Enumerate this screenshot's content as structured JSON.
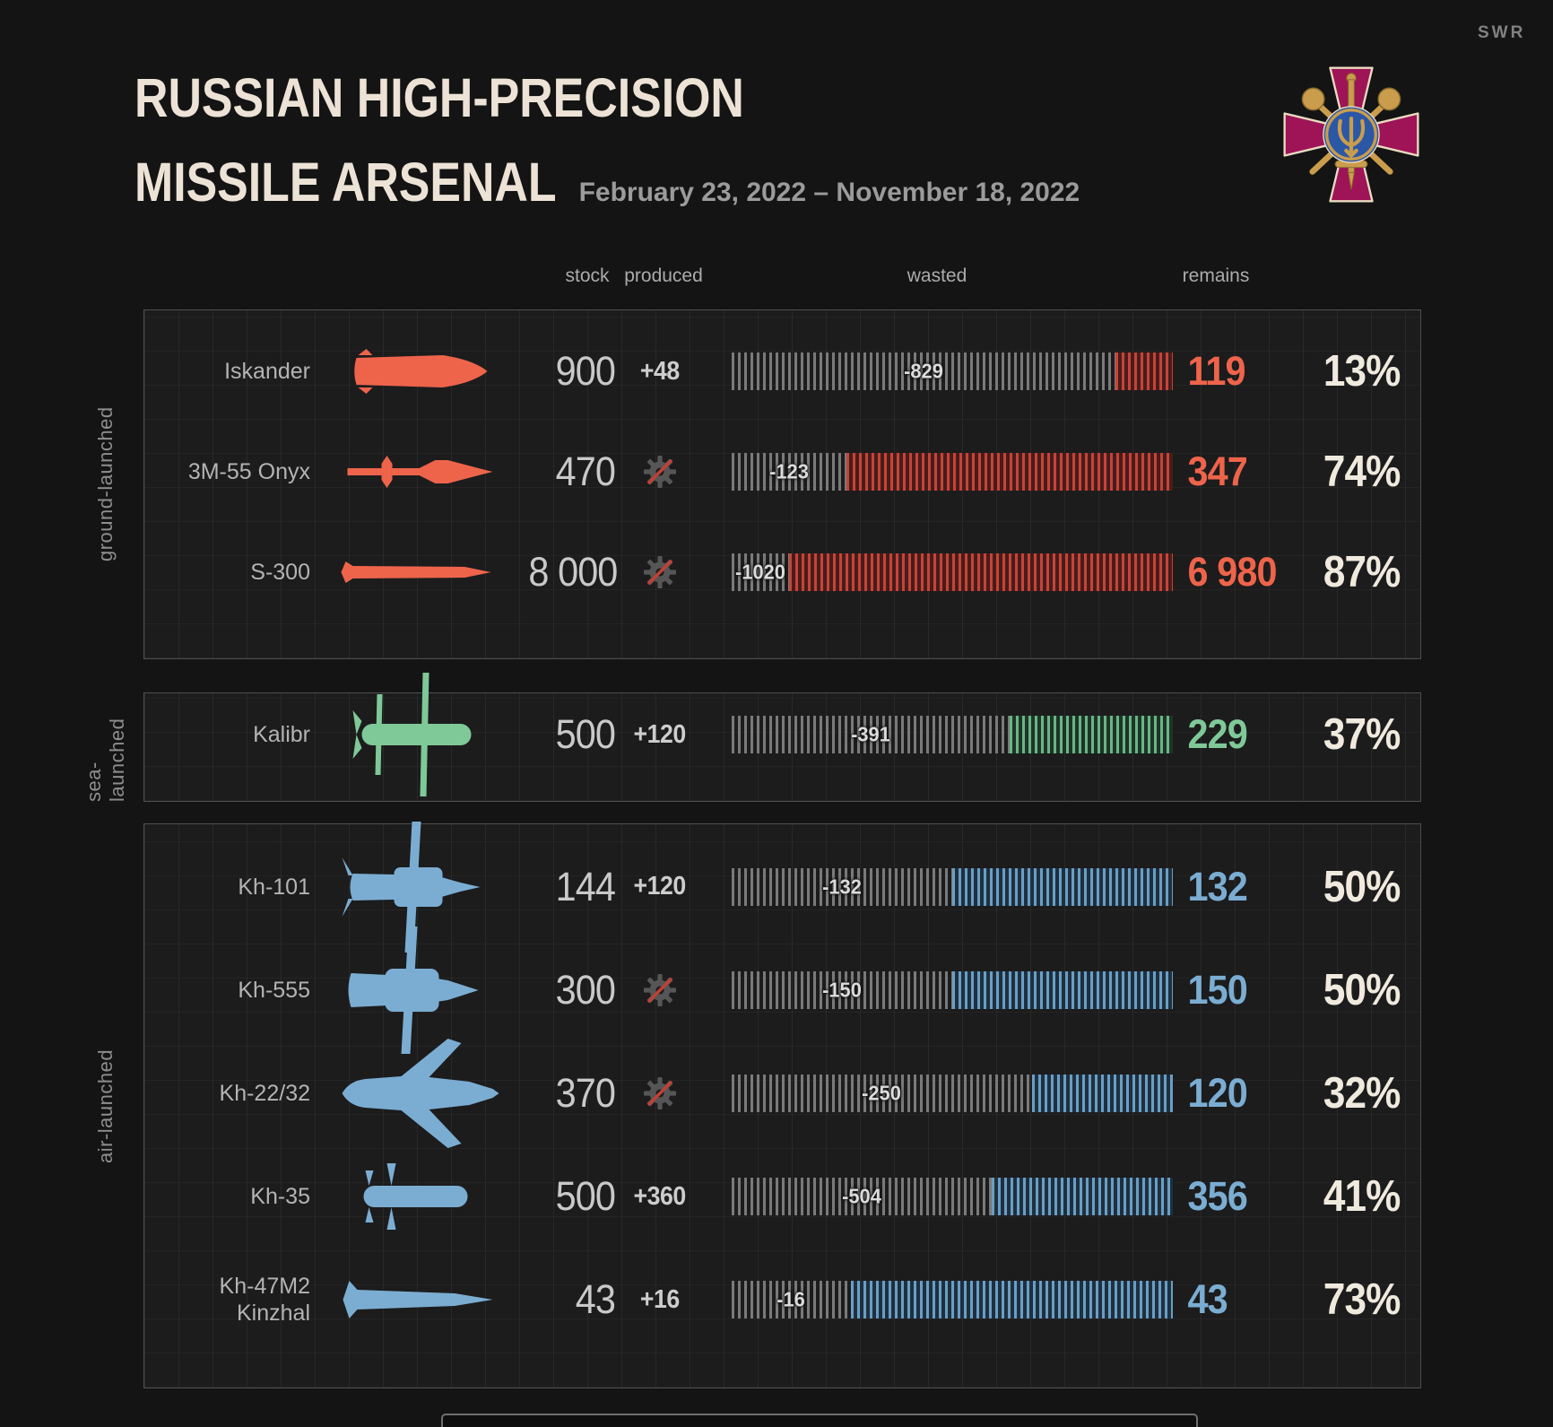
{
  "brand": "SWR",
  "header": {
    "title_line1": "RUSSIAN HIGH-PRECISION",
    "title_line2": "MISSILE ARSENAL",
    "subtitle": "February 23, 2022 – November 18, 2022"
  },
  "logo": {
    "name": "ukraine-ministry-of-defence-emblem",
    "cross_color": "#9e1457",
    "gold": "#c99d4c",
    "blue": "#2b57a7",
    "outline": "#e9dcc0"
  },
  "columns": {
    "stock": "stock",
    "produced": "produced",
    "wasted": "wasted",
    "remains": "remains"
  },
  "groups": [
    {
      "key": "ground",
      "label": "ground-launched",
      "color": "#ee644b",
      "bar_stripe": "#c5443a",
      "bar_fill": "#471d19",
      "rows": [
        {
          "name": "Iskander",
          "icon": "iskander",
          "stock": "900",
          "produced": "+48",
          "wasted": "-829",
          "remains": "119",
          "percent": "13%",
          "percent_value": 13
        },
        {
          "name": "3M-55 Onyx",
          "icon": "onyx",
          "stock": "470",
          "produced": null,
          "wasted": "-123",
          "remains": "347",
          "percent": "74%",
          "percent_value": 74
        },
        {
          "name": "S-300",
          "icon": "s300",
          "stock": "8 000",
          "produced": null,
          "wasted": "-1020",
          "remains": "6 980",
          "percent": "87%",
          "percent_value": 87
        }
      ]
    },
    {
      "key": "sea",
      "label": "sea-launched",
      "color": "#7fc897",
      "bar_stripe": "#6cb486",
      "bar_fill": "#1c3527",
      "rows": [
        {
          "name": "Kalibr",
          "icon": "kalibr",
          "stock": "500",
          "produced": "+120",
          "wasted": "-391",
          "remains": "229",
          "percent": "37%",
          "percent_value": 37
        }
      ]
    },
    {
      "key": "air",
      "label": "air-launched",
      "color": "#7badd2",
      "bar_stripe": "#6b9ec2",
      "bar_fill": "#1e3040",
      "rows": [
        {
          "name": "Kh-101",
          "icon": "kh101",
          "stock": "144",
          "produced": "+120",
          "wasted": "-132",
          "remains": "132",
          "percent": "50%",
          "percent_value": 50
        },
        {
          "name": "Kh-555",
          "icon": "kh555",
          "stock": "300",
          "produced": null,
          "wasted": "-150",
          "remains": "150",
          "percent": "50%",
          "percent_value": 50
        },
        {
          "name": "Kh-22/32",
          "icon": "kh2232",
          "stock": "370",
          "produced": null,
          "wasted": "-250",
          "remains": "120",
          "percent": "32%",
          "percent_value": 32
        },
        {
          "name": "Kh-35",
          "icon": "kh35",
          "stock": "500",
          "produced": "+360",
          "wasted": "-504",
          "remains": "356",
          "percent": "41%",
          "percent_value": 41
        },
        {
          "name": "Kh-47M2 Kinzhal",
          "icon": "kinzhal",
          "stock": "43",
          "produced": "+16",
          "wasted": "-16",
          "remains": "43",
          "percent": "73%",
          "percent_value": 73
        }
      ]
    }
  ],
  "chart_data": {
    "type": "bar",
    "title": "RUSSIAN HIGH-PRECISION MISSILE ARSENAL",
    "subtitle": "February 23, 2022 – November 18, 2022",
    "categories": [
      "Iskander",
      "3M-55 Onyx",
      "S-300",
      "Kalibr",
      "Kh-101",
      "Kh-555",
      "Kh-22/32",
      "Kh-35",
      "Kh-47M2 Kinzhal"
    ],
    "category_groups": [
      "ground-launched",
      "ground-launched",
      "ground-launched",
      "sea-launched",
      "air-launched",
      "air-launched",
      "air-launched",
      "air-launched",
      "air-launched"
    ],
    "series": [
      {
        "name": "stock",
        "values": [
          900,
          470,
          8000,
          500,
          144,
          300,
          370,
          500,
          43
        ]
      },
      {
        "name": "produced",
        "values": [
          48,
          null,
          null,
          120,
          120,
          null,
          null,
          360,
          16
        ]
      },
      {
        "name": "wasted",
        "values": [
          -829,
          -123,
          -1020,
          -391,
          -132,
          -150,
          -250,
          -504,
          -16
        ]
      },
      {
        "name": "remains",
        "values": [
          119,
          347,
          6980,
          229,
          132,
          150,
          120,
          356,
          43
        ]
      },
      {
        "name": "remains_percent",
        "values": [
          13,
          74,
          87,
          37,
          50,
          50,
          32,
          41,
          73
        ]
      }
    ],
    "legend_position": "none",
    "grid": true,
    "group_colors": {
      "ground-launched": "#ee644b",
      "sea-launched": "#7fc897",
      "air-launched": "#7badd2"
    }
  }
}
